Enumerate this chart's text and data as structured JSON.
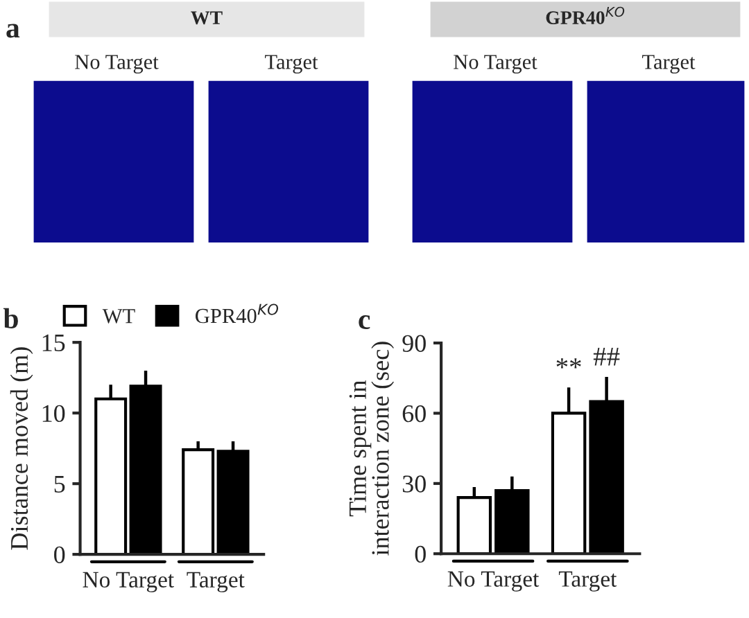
{
  "chart_data": [
    {
      "type": "other",
      "title": "a",
      "annotations": [
        "WT",
        "GPR40$^{KO}$",
        "No Target",
        "Target",
        "No Target",
        "Target"
      ]
    },
    {
      "type": "bar",
      "title": "b",
      "ylabel": "Distance moved (m)",
      "categories": [
        "No Target",
        "Target"
      ],
      "ylim": [
        0,
        15
      ],
      "yticks": [
        0,
        5,
        10,
        15
      ],
      "legend": "top",
      "series": [
        {
          "name": "WT",
          "color": "#ffffff",
          "values": [
            11.0,
            7.4
          ],
          "errors": [
            [
              11.0,
              12.0
            ],
            [
              7.4,
              8.0
            ]
          ]
        },
        {
          "name": "GPR40$^{KO}$",
          "color": "#000000",
          "values": [
            11.9,
            7.3
          ],
          "errors": [
            [
              11.9,
              13.0
            ],
            [
              7.3,
              8.0
            ]
          ]
        }
      ]
    },
    {
      "type": "bar",
      "title": "c",
      "ylabel": "Time spent in\ninteraction zone (sec)",
      "categories": [
        "No Target",
        "Target"
      ],
      "ylim": [
        0,
        90
      ],
      "yticks": [
        0,
        30,
        60,
        90
      ],
      "annotations": [
        "**",
        "##"
      ],
      "series": [
        {
          "color": "#ffffff",
          "values": [
            24,
            60
          ],
          "errors": [
            [
              24,
              28.5
            ],
            [
              60,
              71
            ]
          ]
        },
        {
          "color": "#000000",
          "values": [
            27,
            65
          ],
          "errors": [
            [
              27,
              33
            ],
            [
              65,
              75.5
            ]
          ]
        }
      ]
    }
  ]
}
